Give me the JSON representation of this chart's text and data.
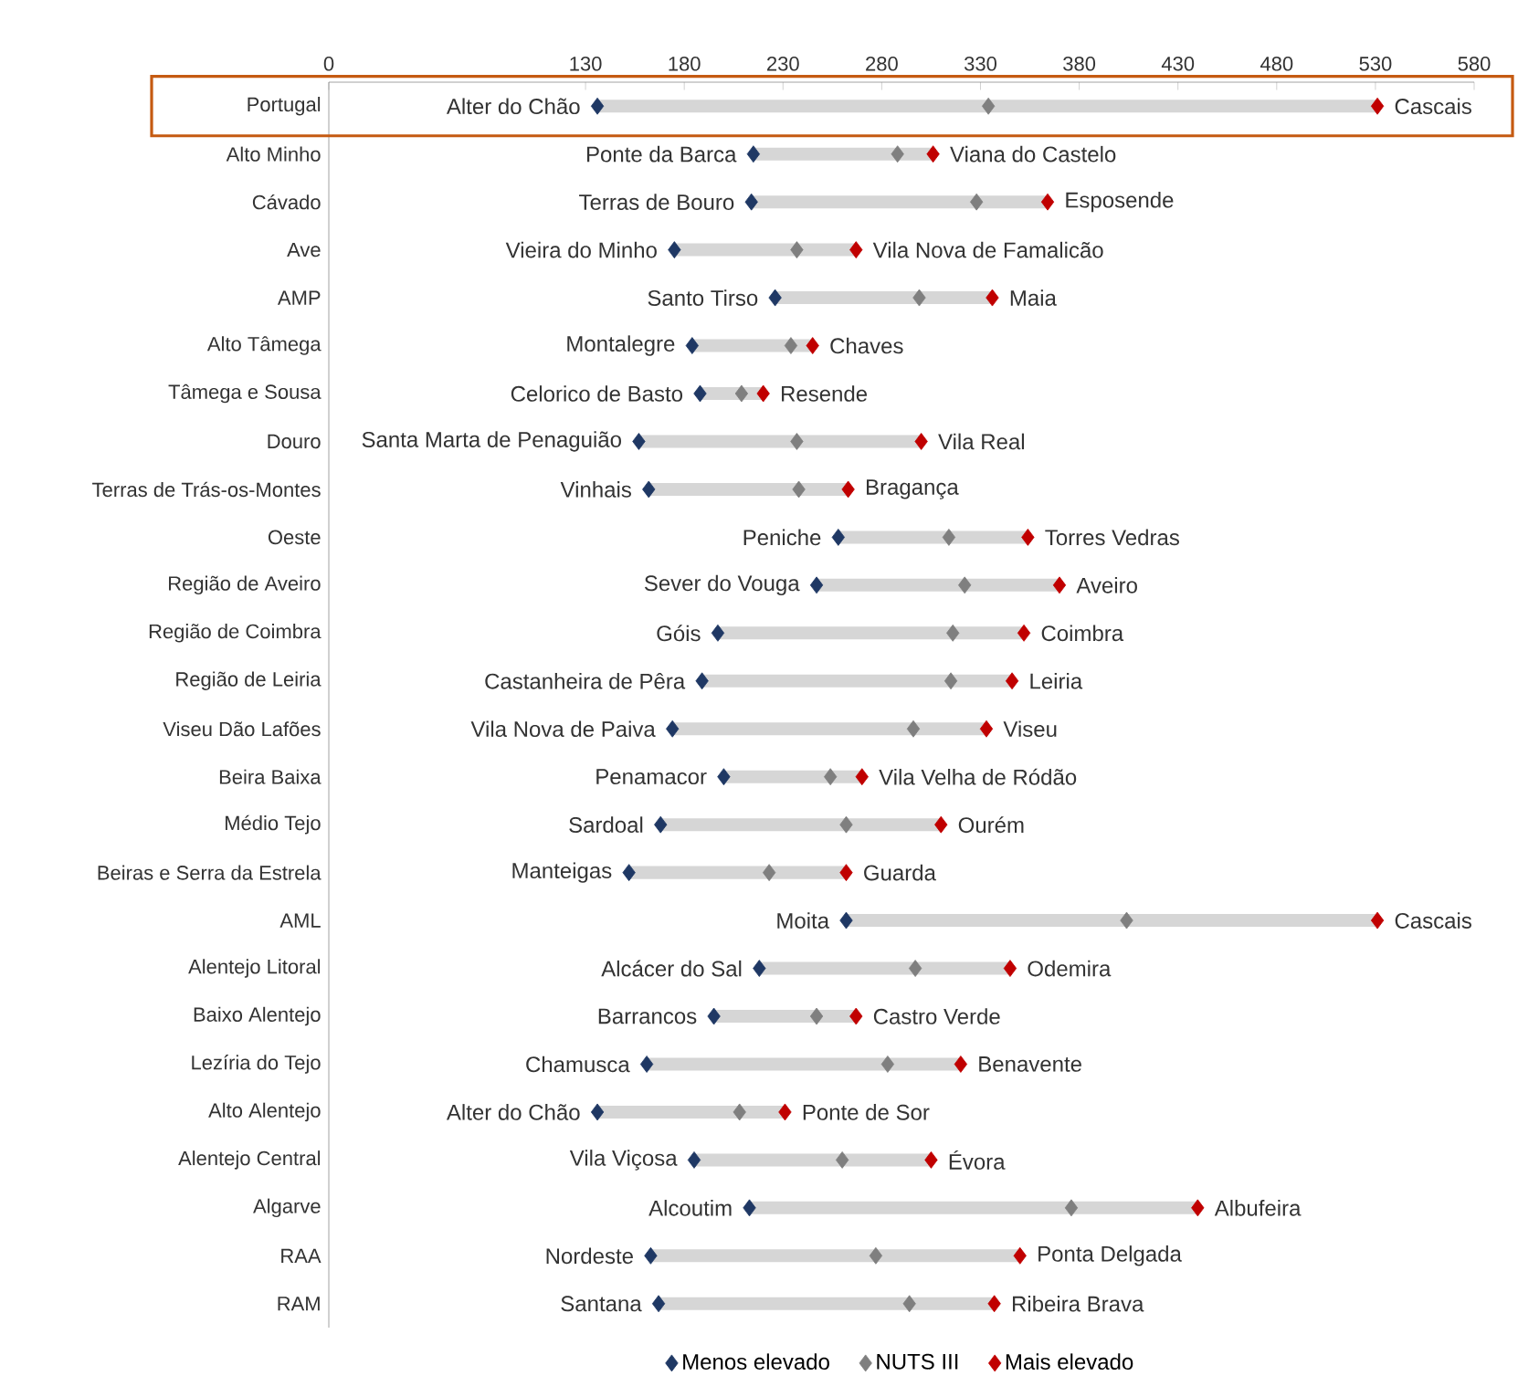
{
  "chart_data": {
    "type": "scatter",
    "orientation": "horizontal",
    "marker": "diamond",
    "legend": "bottom",
    "grid": false,
    "categories": [
      "Portugal",
      "Alto Minho",
      "Cávado",
      "Ave",
      "AMP",
      "Alto Tâmega",
      "Tâmega e Sousa",
      "Douro",
      "Terras de Trás-os-Montes",
      "Oeste",
      "Região de Aveiro",
      "Região de Coimbra",
      "Região de Leiria",
      "Viseu Dão Lafões",
      "Beira Baixa",
      "Médio Tejo",
      "Beiras e Serra da Estrela",
      "AML",
      "Alentejo Litoral",
      "Baixo Alentejo",
      "Lezíria do Tejo",
      "Alto Alentejo",
      "Alentejo Central",
      "Algarve",
      "RAA",
      "RAM"
    ],
    "xlim": [
      0,
      580
    ],
    "xticks": [
      0,
      130,
      180,
      230,
      280,
      330,
      380,
      430,
      480,
      530,
      580
    ],
    "series": [
      {
        "name": "Menos elevado",
        "color": "#1f3864",
        "values": [
          136,
          215,
          214,
          175,
          226,
          184,
          188,
          157,
          162,
          258,
          247,
          197,
          189,
          174,
          200,
          168,
          152,
          262,
          218,
          195,
          161,
          136,
          185,
          213,
          163,
          167
        ],
        "value_labels": [
          "Alter do Chão",
          "Ponte da Barca",
          "Terras de Bouro",
          "Vieira do Minho",
          "Santo Tirso",
          "Montalegre",
          "Celorico de Basto",
          "Santa Marta de Penaguião",
          "Vinhais",
          "Peniche",
          "Sever do Vouga",
          "Góis",
          "Castanheira de Pêra",
          "Vila Nova de Paiva",
          "Penamacor",
          "Sardoal",
          "Manteigas",
          "Moita",
          "Alcácer do Sal",
          "Barrancos",
          "Chamusca",
          "Alter do Chão",
          "Vila Viçosa",
          "Alcoutim",
          "Nordeste",
          "Santana"
        ]
      },
      {
        "name": "NUTS III",
        "color": "#7f7f7f",
        "values": [
          334,
          288,
          328,
          237,
          299,
          234,
          209,
          237,
          238,
          314,
          322,
          316,
          315,
          296,
          254,
          262,
          223,
          404,
          297,
          247,
          283,
          208,
          260,
          376,
          277,
          294
        ]
      },
      {
        "name": "Mais elevado",
        "color": "#c00000",
        "values": [
          531,
          306,
          364,
          267,
          336,
          245,
          220,
          300,
          263,
          354,
          370,
          352,
          346,
          333,
          270,
          310,
          262,
          531,
          345,
          267,
          320,
          231,
          305,
          440,
          350,
          337
        ],
        "value_labels": [
          "Cascais",
          "Viana do Castelo",
          "Esposende",
          "Vila Nova de Famalicão",
          "Maia",
          "Chaves",
          "Resende",
          "Vila Real",
          "Bragança",
          "Torres Vedras",
          "Aveiro",
          "Coimbra",
          "Leiria",
          "Viseu",
          "Vila Velha de Ródão",
          "Ourém",
          "Guarda",
          "Cascais",
          "Odemira",
          "Castro Verde",
          "Benavente",
          "Ponte de Sor",
          "Évora",
          "Albufeira",
          "Ponta Delgada",
          "Ribeira Brava"
        ]
      }
    ]
  }
}
